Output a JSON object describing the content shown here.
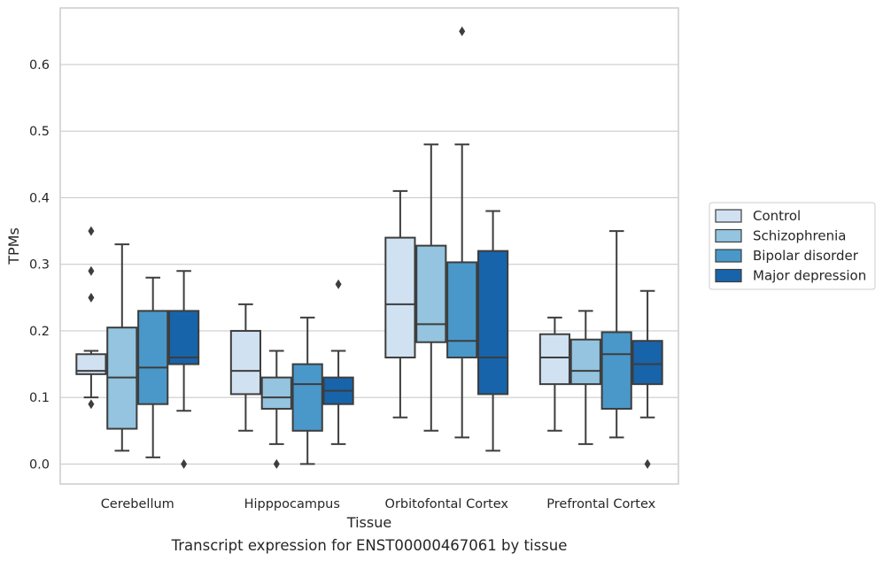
{
  "chart_data": {
    "type": "boxplot",
    "title": "",
    "caption": "Transcript expression for ENST00000467061 by tissue",
    "xlabel": "Tissue",
    "ylabel": "TPMs",
    "ylim": [
      -0.03,
      0.685
    ],
    "yticks": [
      0.0,
      0.1,
      0.2,
      0.3,
      0.4,
      0.5,
      0.6
    ],
    "ytick_labels": [
      "0.0",
      "0.1",
      "0.2",
      "0.3",
      "0.4",
      "0.5",
      "0.6"
    ],
    "grid": "horizontal",
    "legend_position": "right",
    "categories": [
      "Cerebellum",
      "Hipppocampus",
      "Orbitofontal Cortex",
      "Prefrontal Cortex"
    ],
    "series": [
      {
        "name": "Control",
        "color": "#d0e1f2",
        "boxes": [
          {
            "whisker_low": 0.1,
            "q1": 0.135,
            "median": 0.14,
            "q3": 0.165,
            "whisker_high": 0.17,
            "outliers": [
              0.35,
              0.29,
              0.25,
              0.09
            ]
          },
          {
            "whisker_low": 0.05,
            "q1": 0.105,
            "median": 0.14,
            "q3": 0.2,
            "whisker_high": 0.24,
            "outliers": []
          },
          {
            "whisker_low": 0.07,
            "q1": 0.16,
            "median": 0.24,
            "q3": 0.34,
            "whisker_high": 0.41,
            "outliers": []
          },
          {
            "whisker_low": 0.05,
            "q1": 0.12,
            "median": 0.16,
            "q3": 0.195,
            "whisker_high": 0.22,
            "outliers": []
          }
        ]
      },
      {
        "name": "Schizophrenia",
        "color": "#94c4df",
        "boxes": [
          {
            "whisker_low": 0.02,
            "q1": 0.053,
            "median": 0.13,
            "q3": 0.205,
            "whisker_high": 0.33,
            "outliers": []
          },
          {
            "whisker_low": 0.03,
            "q1": 0.083,
            "median": 0.1,
            "q3": 0.13,
            "whisker_high": 0.17,
            "outliers": [
              0.0
            ]
          },
          {
            "whisker_low": 0.05,
            "q1": 0.183,
            "median": 0.21,
            "q3": 0.328,
            "whisker_high": 0.48,
            "outliers": []
          },
          {
            "whisker_low": 0.03,
            "q1": 0.12,
            "median": 0.14,
            "q3": 0.187,
            "whisker_high": 0.23,
            "outliers": []
          }
        ]
      },
      {
        "name": "Bipolar disorder",
        "color": "#4a98c9",
        "boxes": [
          {
            "whisker_low": 0.01,
            "q1": 0.09,
            "median": 0.145,
            "q3": 0.23,
            "whisker_high": 0.28,
            "outliers": []
          },
          {
            "whisker_low": 0.0,
            "q1": 0.05,
            "median": 0.12,
            "q3": 0.15,
            "whisker_high": 0.22,
            "outliers": []
          },
          {
            "whisker_low": 0.04,
            "q1": 0.16,
            "median": 0.185,
            "q3": 0.303,
            "whisker_high": 0.48,
            "outliers": [
              0.65
            ]
          },
          {
            "whisker_low": 0.04,
            "q1": 0.083,
            "median": 0.165,
            "q3": 0.198,
            "whisker_high": 0.35,
            "outliers": []
          }
        ]
      },
      {
        "name": "Major depression",
        "color": "#1764ab",
        "boxes": [
          {
            "whisker_low": 0.08,
            "q1": 0.15,
            "median": 0.16,
            "q3": 0.23,
            "whisker_high": 0.29,
            "outliers": [
              0.0
            ]
          },
          {
            "whisker_low": 0.03,
            "q1": 0.09,
            "median": 0.11,
            "q3": 0.13,
            "whisker_high": 0.17,
            "outliers": [
              0.27
            ]
          },
          {
            "whisker_low": 0.02,
            "q1": 0.105,
            "median": 0.16,
            "q3": 0.32,
            "whisker_high": 0.38,
            "outliers": []
          },
          {
            "whisker_low": 0.07,
            "q1": 0.12,
            "median": 0.15,
            "q3": 0.185,
            "whisker_high": 0.26,
            "outliers": [
              0.0
            ]
          }
        ]
      }
    ]
  }
}
